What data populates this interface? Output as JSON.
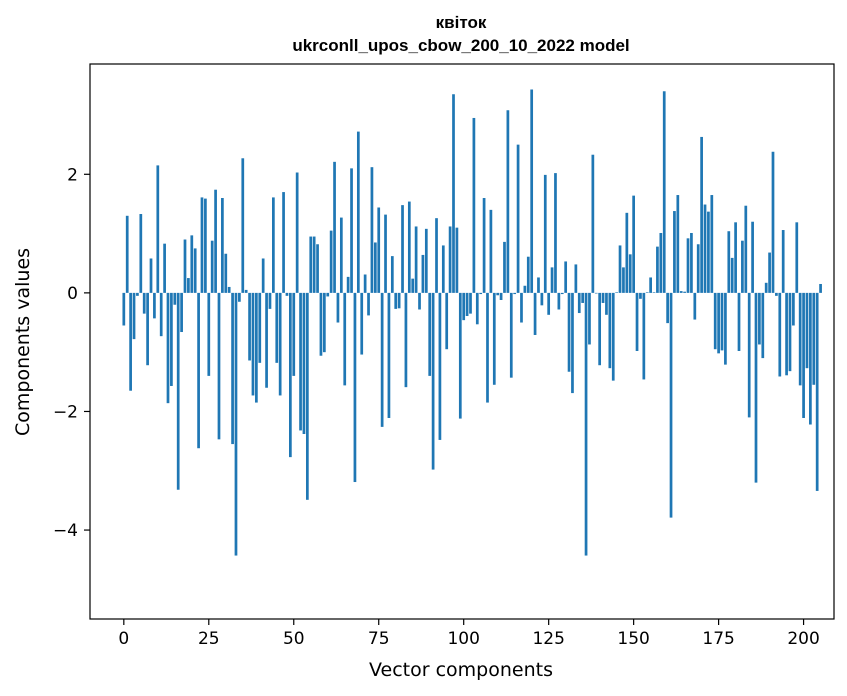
{
  "chart_data": {
    "type": "bar",
    "title_line1": "квіток",
    "title_line2": "ukrconll_upos_cbow_200_10_2022 model",
    "xlabel": "Vector components",
    "ylabel": "Components values",
    "xlim": [
      -9.95,
      208.95
    ],
    "ylim": [
      -5.5,
      3.86
    ],
    "xticks": [
      0,
      25,
      50,
      75,
      100,
      125,
      150,
      175,
      200
    ],
    "yticks": [
      -4,
      -2,
      0,
      2
    ],
    "ytick_labels": [
      "−4",
      "−2",
      "0",
      "2"
    ],
    "grid": false,
    "legend": "none",
    "bar_color": "#1f77b4",
    "values": [
      -0.55,
      1.3,
      -1.65,
      -0.78,
      -0.05,
      1.33,
      -0.35,
      -1.22,
      0.58,
      -0.43,
      2.15,
      -0.73,
      0.83,
      -1.86,
      -1.57,
      -0.2,
      -3.32,
      -0.66,
      0.9,
      0.25,
      0.97,
      0.75,
      -2.62,
      1.61,
      1.59,
      -1.4,
      0.88,
      1.74,
      -2.47,
      1.6,
      0.66,
      0.1,
      -2.55,
      -4.43,
      -0.15,
      2.27,
      0.05,
      -1.14,
      -1.73,
      -1.85,
      -1.18,
      0.58,
      -1.6,
      -0.27,
      1.61,
      -1.18,
      -1.73,
      1.7,
      -0.05,
      -2.77,
      -1.4,
      2.03,
      -2.32,
      -2.38,
      -3.49,
      0.95,
      0.95,
      0.82,
      -1.06,
      -1.0,
      -0.06,
      1.05,
      2.21,
      -0.5,
      1.27,
      -1.56,
      0.27,
      2.1,
      -3.19,
      2.72,
      -1.04,
      0.31,
      -0.38,
      2.12,
      0.85,
      1.44,
      -2.26,
      1.32,
      -2.11,
      0.62,
      -0.27,
      -0.26,
      1.48,
      -1.59,
      1.54,
      0.24,
      1.12,
      -0.28,
      0.64,
      1.08,
      -1.4,
      -2.98,
      1.26,
      -2.48,
      0.8,
      -0.95,
      1.12,
      3.35,
      1.1,
      -2.12,
      -0.46,
      -0.39,
      -0.35,
      2.95,
      -0.53,
      -0.02,
      1.6,
      -1.85,
      1.4,
      -1.55,
      -0.04,
      -0.12,
      0.86,
      3.08,
      -1.43,
      -0.02,
      2.5,
      -0.5,
      0.12,
      0.61,
      3.43,
      -0.71,
      0.26,
      -0.21,
      1.99,
      -0.37,
      0.43,
      2.02,
      -0.28,
      -0.02,
      0.53,
      -1.33,
      -1.69,
      0.48,
      -0.34,
      -0.17,
      -4.43,
      -0.87,
      2.33,
      -0.01,
      -1.22,
      -0.17,
      -0.37,
      -1.27,
      -1.48,
      0.01,
      0.8,
      0.43,
      1.35,
      0.65,
      1.64,
      -0.98,
      -0.1,
      -1.46,
      0.01,
      0.26,
      0.01,
      0.78,
      1.01,
      3.4,
      -0.51,
      -3.79,
      1.38,
      1.65,
      0.03,
      0.02,
      0.92,
      1.01,
      -0.45,
      0.82,
      2.63,
      1.49,
      1.37,
      1.65,
      -0.95,
      -1.02,
      -0.97,
      -1.21,
      1.04,
      0.59,
      1.19,
      -0.98,
      0.88,
      1.47,
      -2.1,
      1.2,
      -3.2,
      -0.87,
      -1.1,
      0.17,
      0.68,
      2.38,
      -0.05,
      -1.41,
      1.06,
      -1.39,
      -1.32,
      -0.55,
      1.19,
      -1.56,
      -2.11,
      -1.27,
      -2.22,
      -1.55,
      -3.34,
      0.15
    ]
  }
}
